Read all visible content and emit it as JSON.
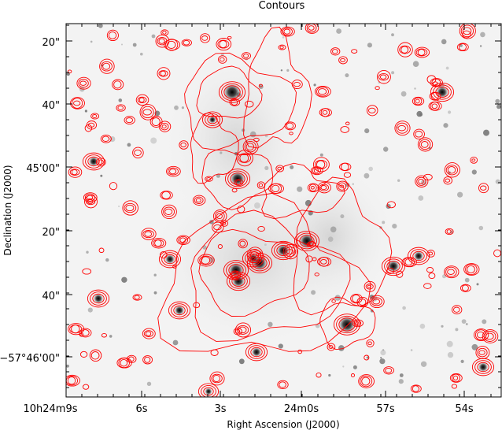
{
  "figure": {
    "title": "Contours",
    "xlabel": "Right Ascension (J2000)",
    "ylabel": "Declination (J2000)",
    "contour_color": "#ff0000",
    "background_style": "inverted grayscale star field",
    "x_tick_labels": [
      "10h24m9s",
      "6s",
      "3s",
      "24m0s",
      "57s",
      "54s"
    ],
    "y_tick_labels": [
      "20\"",
      "40\"",
      "45'00\"",
      "20\"",
      "40\"",
      "−57°46'00\""
    ]
  }
}
